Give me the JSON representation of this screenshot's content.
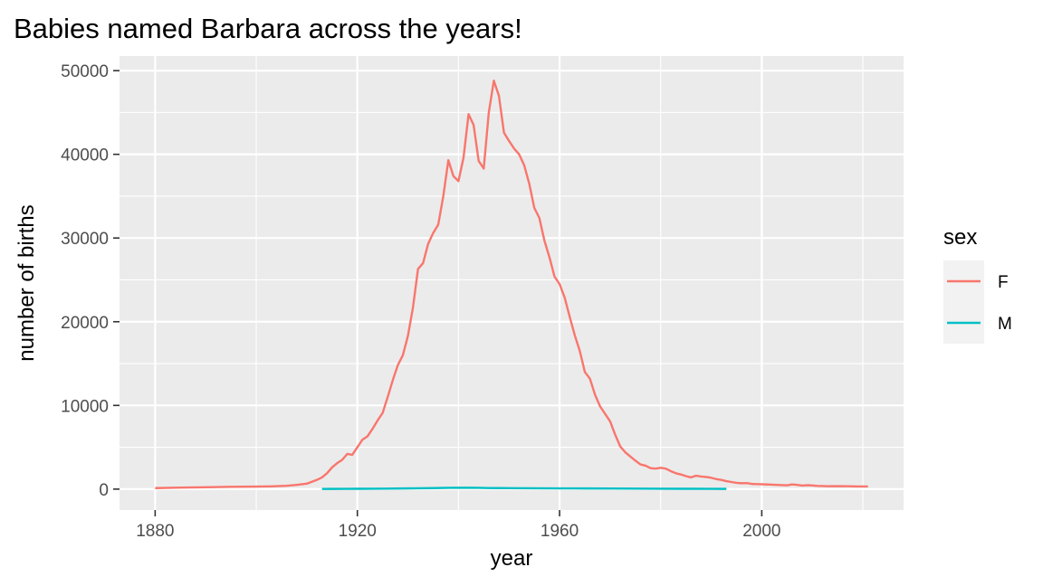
{
  "chart_data": {
    "type": "line",
    "title": "Babies named Barbara across the years!",
    "xlabel": "year",
    "ylabel": "number of births",
    "xlim": [
      1880,
      2021
    ],
    "ylim": [
      0,
      50000
    ],
    "x_ticks": [
      1880,
      1920,
      1960,
      2000
    ],
    "y_ticks": [
      0,
      10000,
      20000,
      30000,
      40000,
      50000
    ],
    "grid": true,
    "legend": {
      "title": "sex",
      "position": "right"
    },
    "series": [
      {
        "name": "F",
        "color": "#F8766D",
        "points": [
          [
            1880,
            120
          ],
          [
            1885,
            180
          ],
          [
            1890,
            220
          ],
          [
            1895,
            280
          ],
          [
            1900,
            300
          ],
          [
            1903,
            330
          ],
          [
            1906,
            400
          ],
          [
            1908,
            500
          ],
          [
            1910,
            650
          ],
          [
            1912,
            1100
          ],
          [
            1913,
            1400
          ],
          [
            1914,
            1900
          ],
          [
            1915,
            2600
          ],
          [
            1916,
            3100
          ],
          [
            1917,
            3500
          ],
          [
            1918,
            4200
          ],
          [
            1919,
            4100
          ],
          [
            1920,
            5000
          ],
          [
            1921,
            5900
          ],
          [
            1922,
            6300
          ],
          [
            1923,
            7200
          ],
          [
            1924,
            8200
          ],
          [
            1925,
            9100
          ],
          [
            1926,
            11000
          ],
          [
            1927,
            13000
          ],
          [
            1928,
            14800
          ],
          [
            1929,
            16000
          ],
          [
            1930,
            18300
          ],
          [
            1931,
            21700
          ],
          [
            1932,
            26300
          ],
          [
            1933,
            27000
          ],
          [
            1934,
            29300
          ],
          [
            1935,
            30600
          ],
          [
            1936,
            31600
          ],
          [
            1937,
            35000
          ],
          [
            1938,
            39300
          ],
          [
            1939,
            37400
          ],
          [
            1940,
            36800
          ],
          [
            1941,
            39600
          ],
          [
            1942,
            44800
          ],
          [
            1943,
            43500
          ],
          [
            1944,
            39200
          ],
          [
            1945,
            38300
          ],
          [
            1946,
            45000
          ],
          [
            1947,
            48800
          ],
          [
            1948,
            47000
          ],
          [
            1949,
            42600
          ],
          [
            1950,
            41600
          ],
          [
            1951,
            40700
          ],
          [
            1952,
            40000
          ],
          [
            1953,
            38700
          ],
          [
            1954,
            36500
          ],
          [
            1955,
            33600
          ],
          [
            1956,
            32400
          ],
          [
            1957,
            29700
          ],
          [
            1958,
            27700
          ],
          [
            1959,
            25400
          ],
          [
            1960,
            24500
          ],
          [
            1961,
            22900
          ],
          [
            1962,
            20600
          ],
          [
            1963,
            18400
          ],
          [
            1964,
            16500
          ],
          [
            1965,
            14000
          ],
          [
            1966,
            13200
          ],
          [
            1967,
            11300
          ],
          [
            1968,
            9900
          ],
          [
            1969,
            9000
          ],
          [
            1970,
            8100
          ],
          [
            1971,
            6500
          ],
          [
            1972,
            5100
          ],
          [
            1973,
            4400
          ],
          [
            1974,
            3900
          ],
          [
            1975,
            3400
          ],
          [
            1976,
            2950
          ],
          [
            1977,
            2800
          ],
          [
            1978,
            2500
          ],
          [
            1979,
            2450
          ],
          [
            1980,
            2550
          ],
          [
            1981,
            2450
          ],
          [
            1982,
            2150
          ],
          [
            1983,
            1900
          ],
          [
            1984,
            1750
          ],
          [
            1985,
            1550
          ],
          [
            1986,
            1400
          ],
          [
            1987,
            1600
          ],
          [
            1988,
            1500
          ],
          [
            1989,
            1450
          ],
          [
            1990,
            1350
          ],
          [
            1991,
            1200
          ],
          [
            1992,
            1100
          ],
          [
            1993,
            950
          ],
          [
            1994,
            850
          ],
          [
            1995,
            750
          ],
          [
            1996,
            700
          ],
          [
            1997,
            720
          ],
          [
            1998,
            620
          ],
          [
            1999,
            600
          ],
          [
            2000,
            580
          ],
          [
            2002,
            530
          ],
          [
            2004,
            480
          ],
          [
            2005,
            450
          ],
          [
            2006,
            560
          ],
          [
            2007,
            500
          ],
          [
            2008,
            420
          ],
          [
            2009,
            470
          ],
          [
            2010,
            440
          ],
          [
            2011,
            380
          ],
          [
            2012,
            370
          ],
          [
            2013,
            340
          ],
          [
            2015,
            350
          ],
          [
            2017,
            340
          ],
          [
            2019,
            320
          ],
          [
            2021,
            320
          ]
        ]
      },
      {
        "name": "M",
        "color": "#00BFC4",
        "points": [
          [
            1913,
            20
          ],
          [
            1915,
            25
          ],
          [
            1918,
            30
          ],
          [
            1920,
            40
          ],
          [
            1923,
            50
          ],
          [
            1926,
            60
          ],
          [
            1929,
            80
          ],
          [
            1932,
            100
          ],
          [
            1935,
            120
          ],
          [
            1938,
            150
          ],
          [
            1940,
            160
          ],
          [
            1942,
            160
          ],
          [
            1944,
            150
          ],
          [
            1946,
            130
          ],
          [
            1948,
            120
          ],
          [
            1950,
            110
          ],
          [
            1955,
            100
          ],
          [
            1960,
            90
          ],
          [
            1965,
            80
          ],
          [
            1970,
            70
          ],
          [
            1975,
            60
          ],
          [
            1980,
            50
          ],
          [
            1985,
            40
          ],
          [
            1990,
            30
          ],
          [
            1993,
            25
          ]
        ]
      }
    ]
  }
}
